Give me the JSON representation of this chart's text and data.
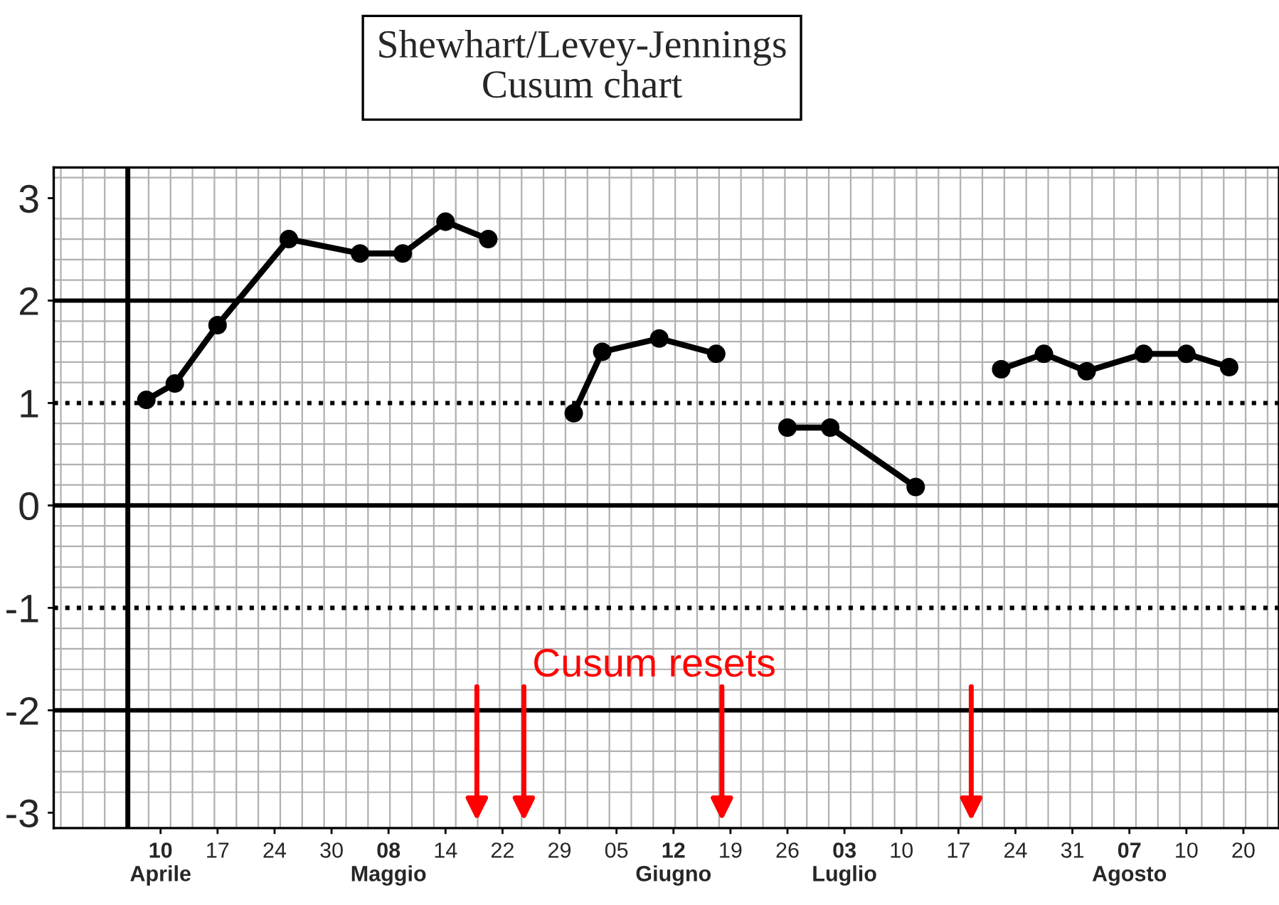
{
  "chart_data": {
    "type": "line",
    "title": "Shewhart/Levey-Jennings\nCusum chart",
    "categories": [
      null,
      null,
      null,
      null,
      null,
      null,
      null,
      "10\nAprile",
      null,
      null,
      null,
      "17",
      null,
      null,
      null,
      "24",
      null,
      null,
      null,
      "30",
      null,
      null,
      null,
      "08\nMaggio",
      null,
      null,
      null,
      "14",
      null,
      null,
      null,
      "22",
      null,
      null,
      null,
      "29",
      null,
      null,
      null,
      "05",
      null,
      null,
      null,
      "12\nGiugno",
      null,
      null,
      null,
      "19",
      null,
      null,
      null,
      "26",
      null,
      null,
      null,
      "03\nLuglio",
      null,
      null,
      null,
      "10",
      null,
      null,
      null,
      "17",
      null,
      null,
      null,
      "24",
      null,
      null,
      null,
      "31",
      null,
      null,
      null,
      "07\nAgosto",
      null,
      null,
      null,
      "10",
      null,
      null,
      null,
      "20",
      null,
      null
    ],
    "series": [
      {
        "color": "#000000",
        "values": [
          null,
          null,
          null,
          null,
          null,
          null,
          1.03,
          null,
          1.19,
          null,
          null,
          1.76,
          null,
          null,
          null,
          null,
          2.6,
          null,
          null,
          null,
          null,
          2.46,
          null,
          null,
          2.46,
          null,
          null,
          2.77,
          null,
          null,
          2.6,
          null,
          null,
          null,
          null,
          null,
          null,
          null,
          null,
          null,
          null,
          null,
          null,
          null,
          null,
          null,
          null,
          null,
          null,
          null,
          null,
          null,
          null,
          null,
          null,
          null,
          null,
          null,
          null,
          null,
          null,
          null,
          null,
          null,
          null,
          null,
          null,
          null,
          null,
          null,
          null,
          null,
          null,
          null,
          null,
          null,
          null,
          null,
          null,
          null,
          null,
          null,
          null,
          null,
          null,
          null
        ]
      },
      {
        "color": "#000000",
        "values": [
          null,
          null,
          null,
          null,
          null,
          null,
          null,
          null,
          null,
          null,
          null,
          null,
          null,
          null,
          null,
          null,
          null,
          null,
          null,
          null,
          null,
          null,
          null,
          null,
          null,
          null,
          null,
          null,
          null,
          null,
          null,
          null,
          null,
          null,
          null,
          null,
          0.9,
          null,
          1.5,
          null,
          null,
          null,
          1.63,
          null,
          null,
          null,
          1.48,
          null,
          null,
          null,
          null,
          null,
          null,
          null,
          null,
          null,
          null,
          null,
          null,
          null,
          null,
          null,
          null,
          null,
          null,
          null,
          null,
          null,
          null,
          null,
          null,
          null,
          null,
          null,
          null,
          null,
          null,
          null,
          null,
          null,
          null,
          null,
          null,
          null,
          null,
          null
        ]
      },
      {
        "color": "#000000",
        "values": [
          null,
          null,
          null,
          null,
          null,
          null,
          null,
          null,
          null,
          null,
          null,
          null,
          null,
          null,
          null,
          null,
          null,
          null,
          null,
          null,
          null,
          null,
          null,
          null,
          null,
          null,
          null,
          null,
          null,
          null,
          null,
          null,
          null,
          null,
          null,
          null,
          null,
          null,
          null,
          null,
          null,
          null,
          null,
          null,
          null,
          null,
          null,
          null,
          null,
          null,
          null,
          0.76,
          null,
          null,
          0.76,
          null,
          null,
          null,
          null,
          null,
          0.18,
          null,
          null,
          null,
          null,
          null,
          null,
          null,
          null,
          null,
          null,
          null,
          null,
          null,
          null,
          null,
          null,
          null,
          null,
          null,
          null,
          null,
          null,
          null,
          null,
          null
        ]
      },
      {
        "color": "#000000",
        "values": [
          null,
          null,
          null,
          null,
          null,
          null,
          null,
          null,
          null,
          null,
          null,
          null,
          null,
          null,
          null,
          null,
          null,
          null,
          null,
          null,
          null,
          null,
          null,
          null,
          null,
          null,
          null,
          null,
          null,
          null,
          null,
          null,
          null,
          null,
          null,
          null,
          null,
          null,
          null,
          null,
          null,
          null,
          null,
          null,
          null,
          null,
          null,
          null,
          null,
          null,
          null,
          null,
          null,
          null,
          null,
          null,
          null,
          null,
          null,
          null,
          null,
          null,
          null,
          null,
          null,
          null,
          1.33,
          null,
          null,
          1.48,
          null,
          null,
          1.31,
          null,
          null,
          null,
          1.48,
          null,
          null,
          1.48,
          null,
          null,
          1.35,
          null,
          null,
          null
        ]
      }
    ],
    "marker": "circle",
    "line_style": "solid",
    "ylim": [
      -3.15,
      3.3
    ],
    "yticks": [
      -3,
      -2,
      -1,
      0,
      1,
      2,
      3
    ],
    "grid": true,
    "ref_lines": [
      {
        "axis": "y",
        "value": 2,
        "color": "#000000",
        "line_style": "solid"
      },
      {
        "axis": "y",
        "value": 1,
        "color": "#000000",
        "line_style": "dotted"
      },
      {
        "axis": "y",
        "value": 0,
        "color": "#000000",
        "line_style": "solid"
      },
      {
        "axis": "y",
        "value": -1,
        "color": "#000000",
        "line_style": "dotted"
      },
      {
        "axis": "y",
        "value": -2,
        "color": "#000000",
        "line_style": "solid"
      }
    ],
    "annotations": [
      "Cusum resets"
    ]
  }
}
